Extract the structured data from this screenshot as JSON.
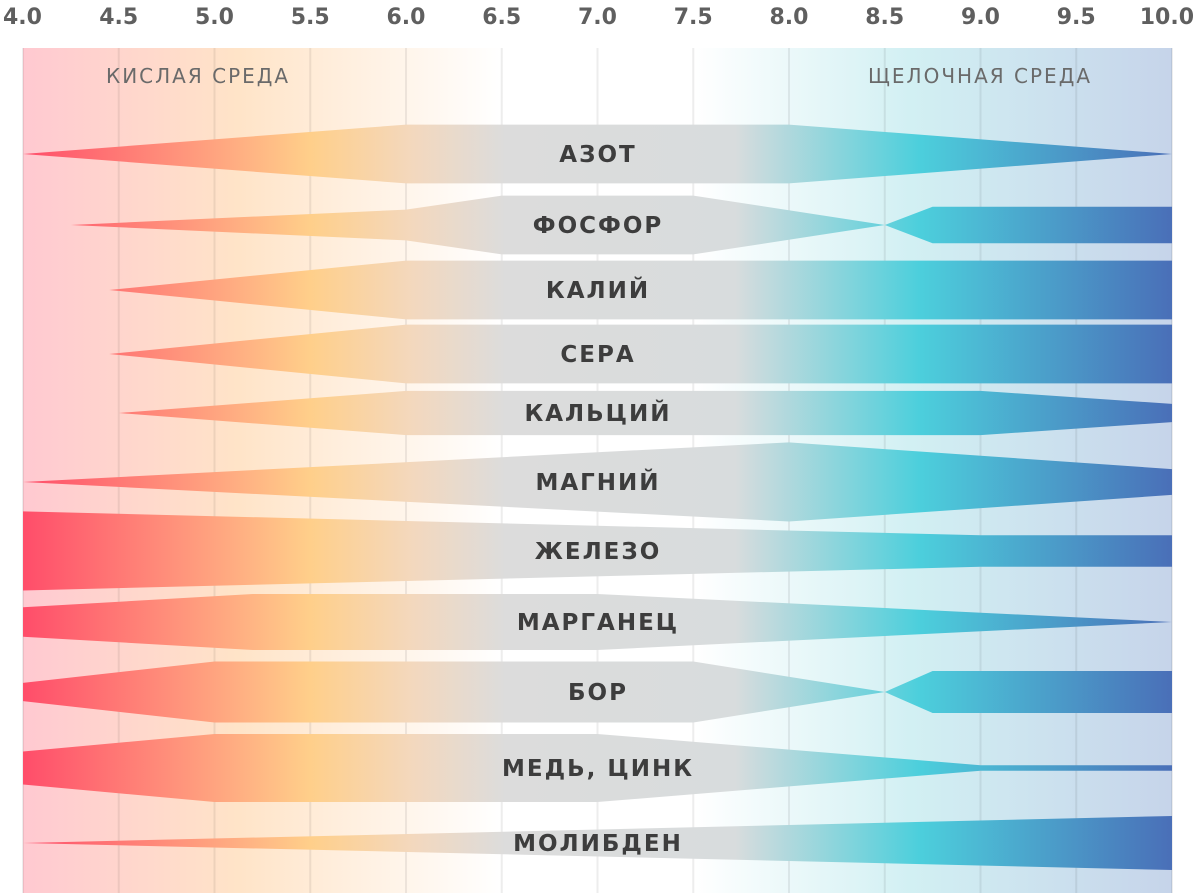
{
  "chart_data": {
    "type": "area",
    "x_ticks": [
      4.0,
      4.5,
      5.0,
      5.5,
      6.0,
      6.5,
      7.0,
      7.5,
      8.0,
      8.5,
      9.0,
      9.5,
      10.0
    ],
    "x_tick_labels": [
      "4.0",
      "4.5",
      "5.0",
      "5.5",
      "6.0",
      "6.5",
      "7.0",
      "7.5",
      "8.0",
      "8.5",
      "9.0",
      "9.5",
      "10.0"
    ],
    "xlim": [
      4.0,
      10.0
    ],
    "grid": true,
    "zones": {
      "acid": "КИСЛАЯ СРЕДА",
      "alkaline": "ЩЕЛОЧНАЯ СРЕДА"
    },
    "colors": {
      "acid_end": "#ff4d6a",
      "acid_mid": "#ffcf8a",
      "neutral": "#dcdcdc",
      "alkaline_mid": "#4ccfdc",
      "alkaline_end": "#4a6fb8"
    },
    "series": [
      {
        "name": "АЗОТ",
        "points": [
          [
            4.0,
            0.0
          ],
          [
            6.0,
            0.84
          ],
          [
            8.0,
            0.84
          ],
          [
            10.0,
            0.0
          ]
        ]
      },
      {
        "name": "ФОСФОР",
        "points": [
          [
            4.25,
            0.0
          ],
          [
            6.0,
            0.44
          ],
          [
            6.5,
            0.84
          ],
          [
            7.5,
            0.84
          ],
          [
            8.5,
            0.0
          ],
          [
            8.75,
            0.52
          ],
          [
            10.0,
            0.52
          ]
        ]
      },
      {
        "name": "КАЛИЙ",
        "points": [
          [
            4.45,
            0.0
          ],
          [
            6.0,
            0.84
          ],
          [
            10.0,
            0.84
          ]
        ]
      },
      {
        "name": "СЕРА",
        "points": [
          [
            4.45,
            0.0
          ],
          [
            6.0,
            0.84
          ],
          [
            10.0,
            0.84
          ]
        ]
      },
      {
        "name": "КАЛЬЦИЙ",
        "points": [
          [
            4.5,
            0.0
          ],
          [
            6.0,
            0.63
          ],
          [
            9.0,
            0.63
          ],
          [
            10.0,
            0.26
          ]
        ]
      },
      {
        "name": "МАГНИЙ",
        "points": [
          [
            4.0,
            0.0
          ],
          [
            8.0,
            1.13
          ],
          [
            10.0,
            0.37
          ]
        ]
      },
      {
        "name": "ЖЕЛЕЗО",
        "points": [
          [
            4.0,
            1.13
          ],
          [
            9.0,
            0.45
          ],
          [
            10.0,
            0.45
          ]
        ]
      },
      {
        "name": "МАРГАНЕЦ",
        "points": [
          [
            4.0,
            0.42
          ],
          [
            5.2,
            0.8
          ],
          [
            7.0,
            0.8
          ],
          [
            10.0,
            0.0
          ]
        ]
      },
      {
        "name": "БОР",
        "points": [
          [
            4.0,
            0.26
          ],
          [
            5.0,
            0.87
          ],
          [
            7.5,
            0.87
          ],
          [
            8.5,
            0.0
          ],
          [
            8.75,
            0.6
          ],
          [
            10.0,
            0.6
          ]
        ]
      },
      {
        "name": "МЕДЬ, ЦИНК",
        "points": [
          [
            4.0,
            0.47
          ],
          [
            5.0,
            0.97
          ],
          [
            7.0,
            0.97
          ],
          [
            9.0,
            0.08
          ],
          [
            10.0,
            0.08
          ]
        ]
      },
      {
        "name": "МОЛИБДЕН",
        "points": [
          [
            4.0,
            0.0
          ],
          [
            10.0,
            0.77
          ]
        ]
      }
    ]
  }
}
